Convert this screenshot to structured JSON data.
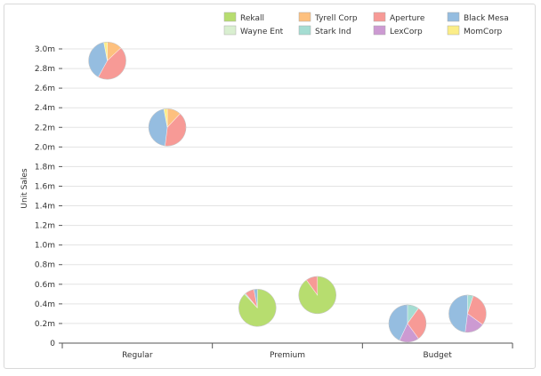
{
  "chart_data": {
    "type": "scatter",
    "subtype": "pie-bubbles",
    "title": "",
    "xlabel": "",
    "ylabel": "Unit Sales",
    "categories": [
      "Regular",
      "Premium",
      "Budget"
    ],
    "ylim": [
      0,
      3.0
    ],
    "yticks": [
      0,
      0.2,
      0.4,
      0.6,
      0.8,
      1.0,
      1.2,
      1.4,
      1.6,
      1.8,
      2.0,
      2.2,
      2.4,
      2.6,
      2.8,
      3.0
    ],
    "ytick_labels": [
      "0",
      "0.2m",
      "0.4m",
      "0.6m",
      "0.8m",
      "1.0m",
      "1.2m",
      "1.4m",
      "1.6m",
      "1.8m",
      "2.0m",
      "2.2m",
      "2.4m",
      "2.6m",
      "2.8m",
      "3.0m"
    ],
    "grid": true,
    "legend_position": "top-right",
    "series": [
      {
        "name": "Rekall",
        "color": "#b7dd6f"
      },
      {
        "name": "Wayne Ent",
        "color": "#d9efd0"
      },
      {
        "name": "Tyrell Corp",
        "color": "#fdc07e"
      },
      {
        "name": "Stark Ind",
        "color": "#a5ddd2"
      },
      {
        "name": "Aperture",
        "color": "#f79a96"
      },
      {
        "name": "LexCorp",
        "color": "#cc9ad2"
      },
      {
        "name": "Black Mesa",
        "color": "#95bde0"
      },
      {
        "name": "MomCorp",
        "color": "#fbed87"
      }
    ],
    "points": [
      {
        "category": "Regular",
        "offset": -0.2,
        "y": 2.88,
        "size": 1.0,
        "shares": {
          "Rekall": 0,
          "Wayne Ent": 0,
          "Tyrell Corp": 0.13,
          "Stark Ind": 0,
          "Aperture": 0.45,
          "LexCorp": 0,
          "Black Mesa": 0.39,
          "MomCorp": 0.03
        }
      },
      {
        "category": "Regular",
        "offset": 0.2,
        "y": 2.2,
        "size": 1.0,
        "shares": {
          "Rekall": 0,
          "Wayne Ent": 0,
          "Tyrell Corp": 0.12,
          "Stark Ind": 0,
          "Aperture": 0.4,
          "LexCorp": 0,
          "Black Mesa": 0.45,
          "MomCorp": 0.03
        }
      },
      {
        "category": "Premium",
        "offset": -0.2,
        "y": 0.36,
        "size": 1.0,
        "shares": {
          "Rekall": 0.88,
          "Wayne Ent": 0,
          "Tyrell Corp": 0,
          "Stark Ind": 0.01,
          "Aperture": 0.08,
          "LexCorp": 0,
          "Black Mesa": 0.03,
          "MomCorp": 0
        }
      },
      {
        "category": "Premium",
        "offset": 0.2,
        "y": 0.49,
        "size": 1.0,
        "shares": {
          "Rekall": 0.9,
          "Wayne Ent": 0,
          "Tyrell Corp": 0,
          "Stark Ind": 0,
          "Aperture": 0.1,
          "LexCorp": 0,
          "Black Mesa": 0,
          "MomCorp": 0
        }
      },
      {
        "category": "Budget",
        "offset": -0.2,
        "y": 0.2,
        "size": 1.0,
        "shares": {
          "Rekall": 0,
          "Wayne Ent": 0,
          "Tyrell Corp": 0,
          "Stark Ind": 0.1,
          "Aperture": 0.3,
          "LexCorp": 0.17,
          "Black Mesa": 0.43,
          "MomCorp": 0
        }
      },
      {
        "category": "Budget",
        "offset": 0.2,
        "y": 0.3,
        "size": 1.0,
        "shares": {
          "Rekall": 0,
          "Wayne Ent": 0,
          "Tyrell Corp": 0,
          "Stark Ind": 0.05,
          "Aperture": 0.3,
          "LexCorp": 0.17,
          "Black Mesa": 0.48,
          "MomCorp": 0
        }
      }
    ]
  }
}
